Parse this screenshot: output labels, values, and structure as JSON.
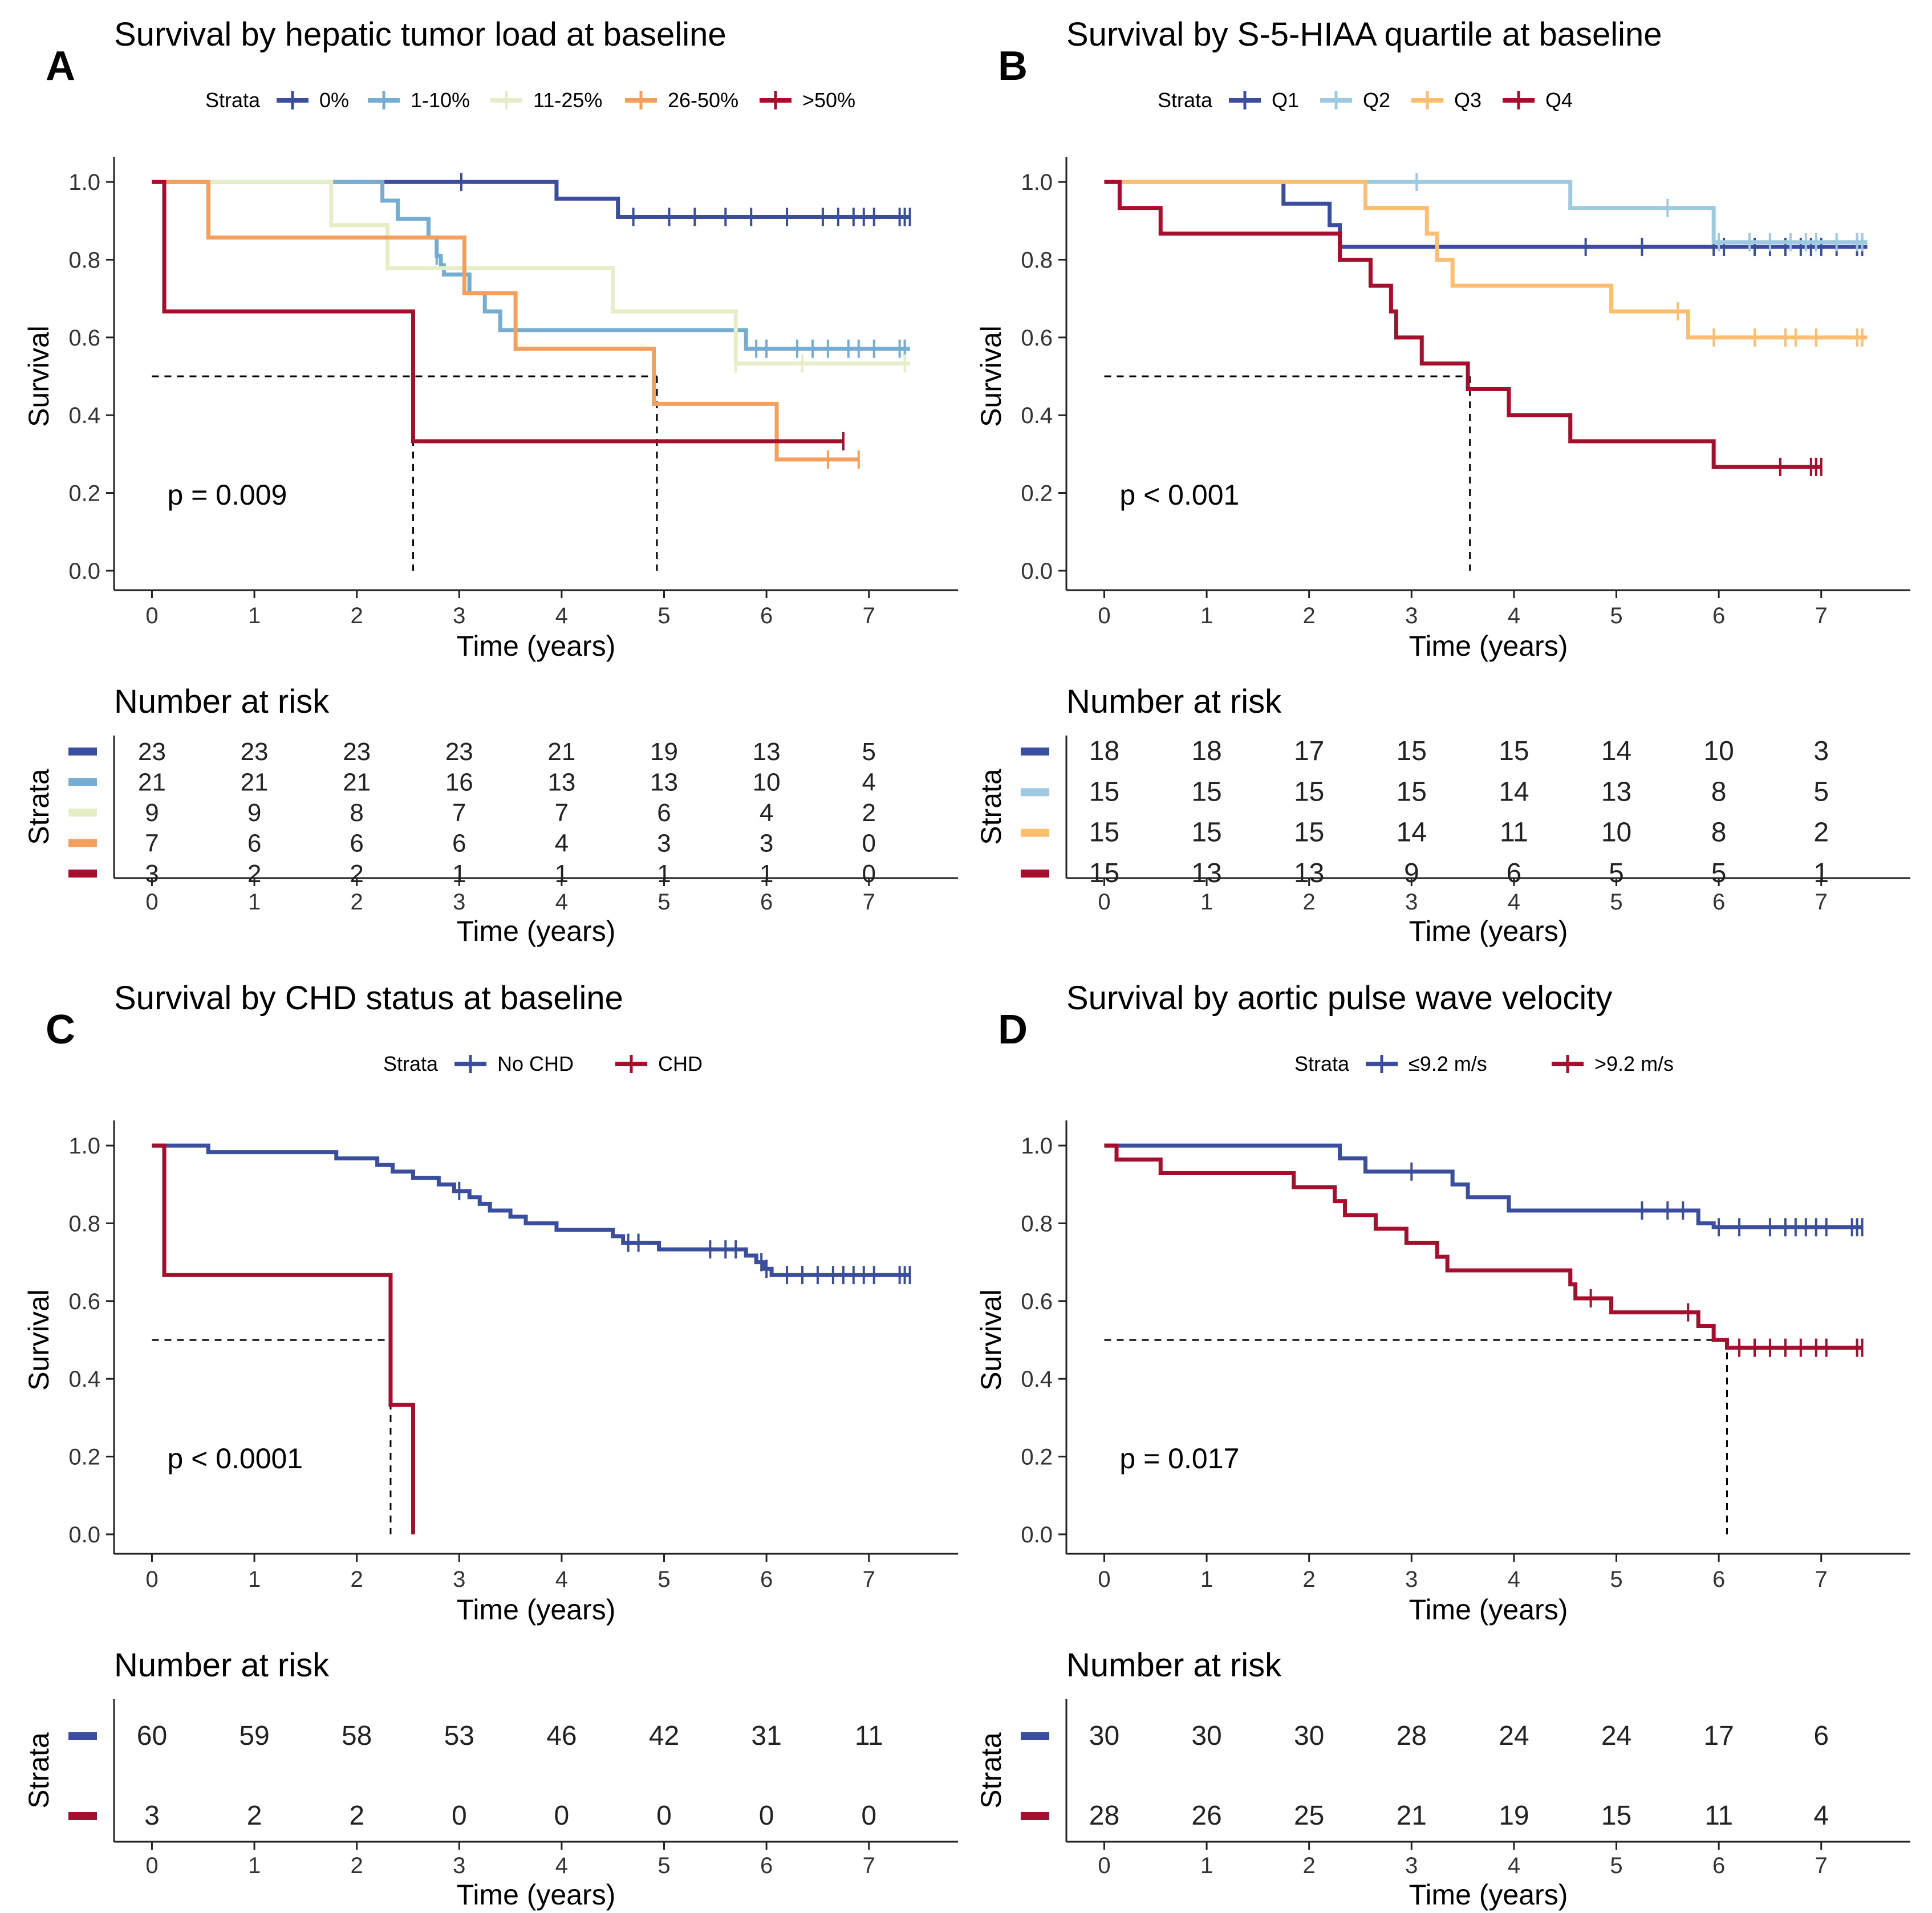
{
  "chart_data": [
    {
      "type": "line",
      "panel_label": "A",
      "title": "Survival by hepatic tumor load at baseline",
      "legend_title": "Strata",
      "xlabel": "Time (years)",
      "ylabel": "Survival",
      "xlim": [
        -0.37,
        7.87
      ],
      "ylim": [
        -0.05,
        1.05
      ],
      "x_ticks": [
        "0",
        "1",
        "2",
        "3",
        "4",
        "5",
        "6",
        "7"
      ],
      "y_ticks": [
        "0.0",
        "0.2",
        "0.4",
        "0.6",
        "0.8",
        "1.0"
      ],
      "p_value": "p = 0.009",
      "median_lines": [
        {
          "x": 2.55,
          "y": 0.5
        },
        {
          "x": 4.93,
          "y": 0.5
        }
      ],
      "series": [
        {
          "name": "0%",
          "color": "#3B4E9E",
          "steps": [
            [
              0,
              1.0
            ],
            [
              3.95,
              0.957
            ],
            [
              4.55,
              0.91
            ]
          ],
          "end": 7.4,
          "censors": [
            3.02,
            4.7,
            5.05,
            5.3,
            5.6,
            5.85,
            6.2,
            6.55,
            6.7,
            6.85,
            6.95,
            7.05,
            7.3,
            7.35,
            7.4
          ]
        },
        {
          "name": "1-10%",
          "color": "#74ADD1",
          "steps": [
            [
              0,
              1.0
            ],
            [
              2.25,
              0.952
            ],
            [
              2.4,
              0.905
            ],
            [
              2.7,
              0.857
            ],
            [
              2.78,
              0.81
            ],
            [
              2.82,
              0.786
            ],
            [
              2.85,
              0.762
            ],
            [
              3.1,
              0.714
            ],
            [
              3.25,
              0.667
            ],
            [
              3.4,
              0.619
            ],
            [
              5.8,
              0.571
            ]
          ],
          "end": 7.4,
          "censors": [
            2.78,
            5.9,
            6.0,
            6.3,
            6.45,
            6.6,
            6.8,
            6.9,
            7.05,
            7.3,
            7.35
          ]
        },
        {
          "name": "11-25%",
          "color": "#E6EEC8",
          "steps": [
            [
              0,
              1.0
            ],
            [
              1.75,
              0.889
            ],
            [
              2.3,
              0.778
            ],
            [
              4.5,
              0.667
            ],
            [
              5.7,
              0.533
            ]
          ],
          "end": 7.4,
          "censors": [
            5.7,
            6.35,
            7.35
          ]
        },
        {
          "name": "26-50%",
          "color": "#F59F5C",
          "steps": [
            [
              0,
              1.0
            ],
            [
              0.55,
              0.857
            ],
            [
              3.05,
              0.714
            ],
            [
              3.55,
              0.571
            ],
            [
              4.9,
              0.429
            ],
            [
              6.1,
              0.286
            ]
          ],
          "end": 6.9,
          "censors": [
            6.6,
            6.9
          ]
        },
        {
          "name": ">50%",
          "color": "#A50F2D",
          "steps": [
            [
              0,
              1.0
            ],
            [
              0.12,
              0.667
            ],
            [
              2.55,
              0.333
            ]
          ],
          "end": 6.75,
          "censors": [
            6.75
          ]
        }
      ],
      "risk_table": {
        "title": "Number at risk",
        "ylabel": "Strata",
        "rows": [
          [
            "23",
            "23",
            "23",
            "23",
            "21",
            "19",
            "13",
            "5"
          ],
          [
            "21",
            "21",
            "21",
            "16",
            "13",
            "13",
            "10",
            "4"
          ],
          [
            "9",
            "9",
            "8",
            "7",
            "7",
            "6",
            "4",
            "2"
          ],
          [
            "7",
            "6",
            "6",
            "6",
            "4",
            "3",
            "3",
            "0"
          ],
          [
            "3",
            "2",
            "2",
            "1",
            "1",
            "1",
            "1",
            "0"
          ]
        ]
      }
    },
    {
      "type": "line",
      "panel_label": "B",
      "title": "Survival by S-5-HIAA quartile at baseline",
      "legend_title": "Strata",
      "xlabel": "Time (years)",
      "ylabel": "Survival",
      "xlim": [
        -0.37,
        7.87
      ],
      "ylim": [
        -0.05,
        1.05
      ],
      "x_ticks": [
        "0",
        "1",
        "2",
        "3",
        "4",
        "5",
        "6",
        "7"
      ],
      "y_ticks": [
        "0.0",
        "0.2",
        "0.4",
        "0.6",
        "0.8",
        "1.0"
      ],
      "p_value": "p < 0.001",
      "median_lines": [
        {
          "x": 3.57,
          "y": 0.5
        }
      ],
      "series": [
        {
          "name": "Q1",
          "color": "#3B4E9E",
          "steps": [
            [
              0,
              1.0
            ],
            [
              1.75,
              0.944
            ],
            [
              2.2,
              0.889
            ],
            [
              2.3,
              0.833
            ]
          ],
          "end": 7.45,
          "censors": [
            4.7,
            5.25,
            5.95,
            6.05,
            6.35,
            6.5,
            6.65,
            6.8,
            6.9,
            7.0,
            7.15,
            7.35,
            7.4
          ]
        },
        {
          "name": "Q2",
          "color": "#9ECAE1",
          "steps": [
            [
              0,
              1.0
            ],
            [
              4.55,
              0.933
            ],
            [
              5.95,
              0.845
            ]
          ],
          "end": 7.45,
          "censors": [
            3.05,
            5.5,
            6.0,
            6.3,
            6.5,
            6.7,
            6.85,
            6.95,
            7.15,
            7.35,
            7.4
          ]
        },
        {
          "name": "Q3",
          "color": "#FDBF6F",
          "steps": [
            [
              0,
              1.0
            ],
            [
              2.55,
              0.933
            ],
            [
              3.15,
              0.867
            ],
            [
              3.25,
              0.8
            ],
            [
              3.4,
              0.733
            ],
            [
              4.95,
              0.667
            ],
            [
              5.7,
              0.6
            ]
          ],
          "end": 7.45,
          "censors": [
            5.6,
            5.95,
            6.35,
            6.65,
            6.75,
            6.95,
            7.35,
            7.4
          ]
        },
        {
          "name": "Q4",
          "color": "#A50F2D",
          "steps": [
            [
              0,
              1.0
            ],
            [
              0.15,
              0.933
            ],
            [
              0.55,
              0.867
            ],
            [
              2.3,
              0.8
            ],
            [
              2.6,
              0.733
            ],
            [
              2.8,
              0.667
            ],
            [
              2.85,
              0.6
            ],
            [
              3.1,
              0.533
            ],
            [
              3.55,
              0.467
            ],
            [
              3.95,
              0.4
            ],
            [
              4.55,
              0.333
            ],
            [
              5.95,
              0.267
            ]
          ],
          "end": 7.0,
          "censors": [
            6.6,
            6.9,
            6.95,
            7.0
          ]
        }
      ],
      "risk_table": {
        "title": "Number at risk",
        "ylabel": "Strata",
        "rows": [
          [
            "18",
            "18",
            "17",
            "15",
            "15",
            "14",
            "10",
            "3"
          ],
          [
            "15",
            "15",
            "15",
            "15",
            "14",
            "13",
            "8",
            "5"
          ],
          [
            "15",
            "15",
            "15",
            "14",
            "11",
            "10",
            "8",
            "2"
          ],
          [
            "15",
            "13",
            "13",
            "9",
            "6",
            "5",
            "5",
            "1"
          ]
        ]
      }
    },
    {
      "type": "line",
      "panel_label": "C",
      "title": "Survival by CHD status at baseline",
      "legend_title": "Strata",
      "xlabel": "Time (years)",
      "ylabel": "Survival",
      "xlim": [
        -0.37,
        7.87
      ],
      "ylim": [
        -0.05,
        1.05
      ],
      "x_ticks": [
        "0",
        "1",
        "2",
        "3",
        "4",
        "5",
        "6",
        "7"
      ],
      "y_ticks": [
        "0.0",
        "0.2",
        "0.4",
        "0.6",
        "0.8",
        "1.0"
      ],
      "p_value": "p < 0.0001",
      "median_lines": [
        {
          "x": 2.33,
          "y": 0.5
        }
      ],
      "series": [
        {
          "name": "No CHD",
          "color": "#3B4E9E",
          "steps": [
            [
              0,
              1.0
            ],
            [
              0.55,
              0.983
            ],
            [
              1.8,
              0.967
            ],
            [
              2.2,
              0.95
            ],
            [
              2.35,
              0.933
            ],
            [
              2.55,
              0.917
            ],
            [
              2.8,
              0.9
            ],
            [
              2.95,
              0.883
            ],
            [
              3.1,
              0.867
            ],
            [
              3.2,
              0.85
            ],
            [
              3.3,
              0.833
            ],
            [
              3.5,
              0.817
            ],
            [
              3.65,
              0.8
            ],
            [
              3.95,
              0.783
            ],
            [
              4.5,
              0.767
            ],
            [
              4.6,
              0.75
            ],
            [
              4.95,
              0.733
            ],
            [
              5.8,
              0.717
            ],
            [
              5.9,
              0.7
            ],
            [
              5.98,
              0.683
            ],
            [
              6.05,
              0.667
            ]
          ],
          "end": 7.4,
          "censors": [
            3.0,
            4.65,
            4.75,
            5.45,
            5.6,
            5.7,
            5.95,
            6.0,
            6.2,
            6.35,
            6.5,
            6.65,
            6.75,
            6.85,
            6.95,
            7.05,
            7.3,
            7.35,
            7.4
          ]
        },
        {
          "name": "CHD",
          "color": "#A50F2D",
          "steps": [
            [
              0,
              1.0
            ],
            [
              0.12,
              0.667
            ],
            [
              2.33,
              0.333
            ],
            [
              2.55,
              0.0
            ]
          ],
          "end": 2.55,
          "censors": []
        }
      ],
      "risk_table": {
        "title": "Number at risk",
        "ylabel": "Strata",
        "rows": [
          [
            "60",
            "59",
            "58",
            "53",
            "46",
            "42",
            "31",
            "11"
          ],
          [
            "3",
            "2",
            "2",
            "0",
            "0",
            "0",
            "0",
            "0"
          ]
        ]
      }
    },
    {
      "type": "line",
      "panel_label": "D",
      "title": "Survival by aortic pulse wave velocity",
      "legend_title": "Strata",
      "xlabel": "Time (years)",
      "ylabel": "Survival",
      "xlim": [
        -0.37,
        7.87
      ],
      "ylim": [
        -0.05,
        1.05
      ],
      "x_ticks": [
        "0",
        "1",
        "2",
        "3",
        "4",
        "5",
        "6",
        "7"
      ],
      "y_ticks": [
        "0.0",
        "0.2",
        "0.4",
        "0.6",
        "0.8",
        "1.0"
      ],
      "p_value": "p = 0.017",
      "median_lines": [
        {
          "x": 6.08,
          "y": 0.5
        }
      ],
      "series": [
        {
          "name": "≤9.2 m/s",
          "color": "#3B4E9E",
          "steps": [
            [
              0,
              1.0
            ],
            [
              2.3,
              0.967
            ],
            [
              2.55,
              0.933
            ],
            [
              3.4,
              0.9
            ],
            [
              3.55,
              0.867
            ],
            [
              3.95,
              0.833
            ],
            [
              5.8,
              0.8
            ],
            [
              5.95,
              0.79
            ]
          ],
          "end": 7.4,
          "censors": [
            3.0,
            5.25,
            5.5,
            5.65,
            6.0,
            6.2,
            6.5,
            6.65,
            6.75,
            6.85,
            6.95,
            7.05,
            7.3,
            7.35,
            7.4
          ]
        },
        {
          "name": ">9.2 m/s",
          "color": "#A50F2D",
          "steps": [
            [
              0,
              1.0
            ],
            [
              0.12,
              0.964
            ],
            [
              0.55,
              0.929
            ],
            [
              1.85,
              0.893
            ],
            [
              2.25,
              0.857
            ],
            [
              2.35,
              0.821
            ],
            [
              2.65,
              0.786
            ],
            [
              2.95,
              0.75
            ],
            [
              3.25,
              0.714
            ],
            [
              3.35,
              0.679
            ],
            [
              4.55,
              0.643
            ],
            [
              4.6,
              0.607
            ],
            [
              4.95,
              0.571
            ],
            [
              5.8,
              0.536
            ],
            [
              5.95,
              0.5
            ],
            [
              6.08,
              0.48
            ]
          ],
          "end": 7.4,
          "censors": [
            4.75,
            5.7,
            6.2,
            6.35,
            6.5,
            6.65,
            6.8,
            6.95,
            7.05,
            7.35,
            7.4
          ]
        }
      ],
      "risk_table": {
        "title": "Number at risk",
        "ylabel": "Strata",
        "rows": [
          [
            "30",
            "30",
            "30",
            "28",
            "24",
            "24",
            "17",
            "6"
          ],
          [
            "28",
            "26",
            "25",
            "21",
            "19",
            "15",
            "11",
            "4"
          ]
        ]
      }
    }
  ]
}
